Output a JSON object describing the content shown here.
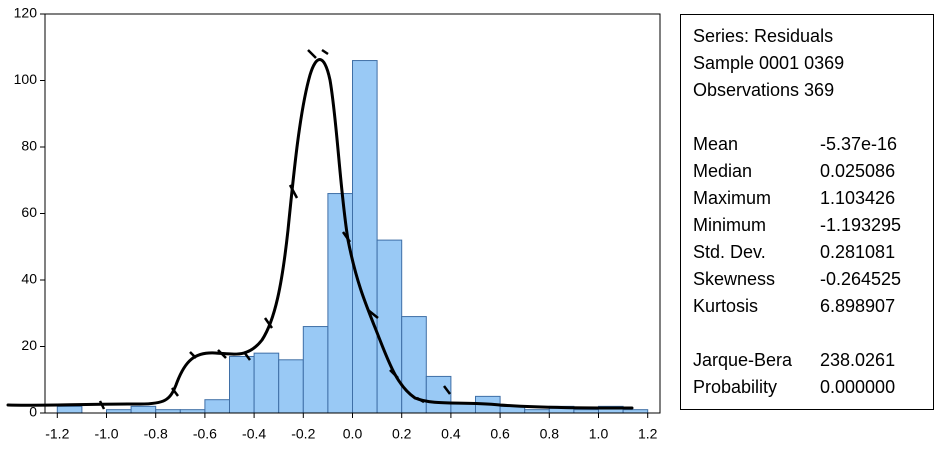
{
  "chart_data": {
    "type": "histogram",
    "bins": [
      -1.2,
      -1.1,
      -1.0,
      -0.9,
      -0.8,
      -0.7,
      -0.6,
      -0.5,
      -0.4,
      -0.3,
      -0.2,
      -0.1,
      0.0,
      0.1,
      0.2,
      0.3,
      0.4,
      0.5,
      0.6,
      0.7,
      0.8,
      0.9,
      1.0,
      1.1,
      1.2
    ],
    "values": [
      2,
      0,
      1,
      2,
      1,
      1,
      4,
      17,
      18,
      16,
      26,
      66,
      106,
      52,
      29,
      11,
      3,
      5,
      2,
      1,
      2,
      1,
      2,
      1
    ],
    "color": "#99c9f5",
    "edge_color": "#3f6fa6",
    "xlim": [
      -1.25,
      1.25
    ],
    "xticks": [
      -1.2,
      {
        "value": -1.0,
        "label": "-1.0"
      },
      -0.8,
      -0.6,
      -0.4,
      -0.2,
      {
        "value": 0.0,
        "label": "0.0"
      },
      0.2,
      0.4,
      0.6,
      0.8,
      {
        "value": 1.0,
        "label": "1.0"
      },
      1.2
    ],
    "ylim": [
      0,
      120
    ],
    "yticks": [
      0,
      20,
      40,
      60,
      80,
      100,
      120
    ],
    "stats": {
      "header": [
        "Series: Residuals",
        "Sample 0001 0369",
        "Observations 369"
      ],
      "rows": [
        [
          "Mean",
          "-5.37e-16"
        ],
        [
          "Median",
          "0.025086"
        ],
        [
          "Maximum",
          "1.103426"
        ],
        [
          "Minimum",
          "-1.193295"
        ],
        [
          "Std. Dev.",
          "0.281081"
        ],
        [
          "Skewness",
          "-0.264525"
        ],
        [
          "Kurtosis",
          "6.898907"
        ]
      ],
      "tests": [
        [
          "Jarque-Bera",
          "238.0261"
        ],
        [
          "Probability",
          "0.000000"
        ]
      ]
    }
  }
}
